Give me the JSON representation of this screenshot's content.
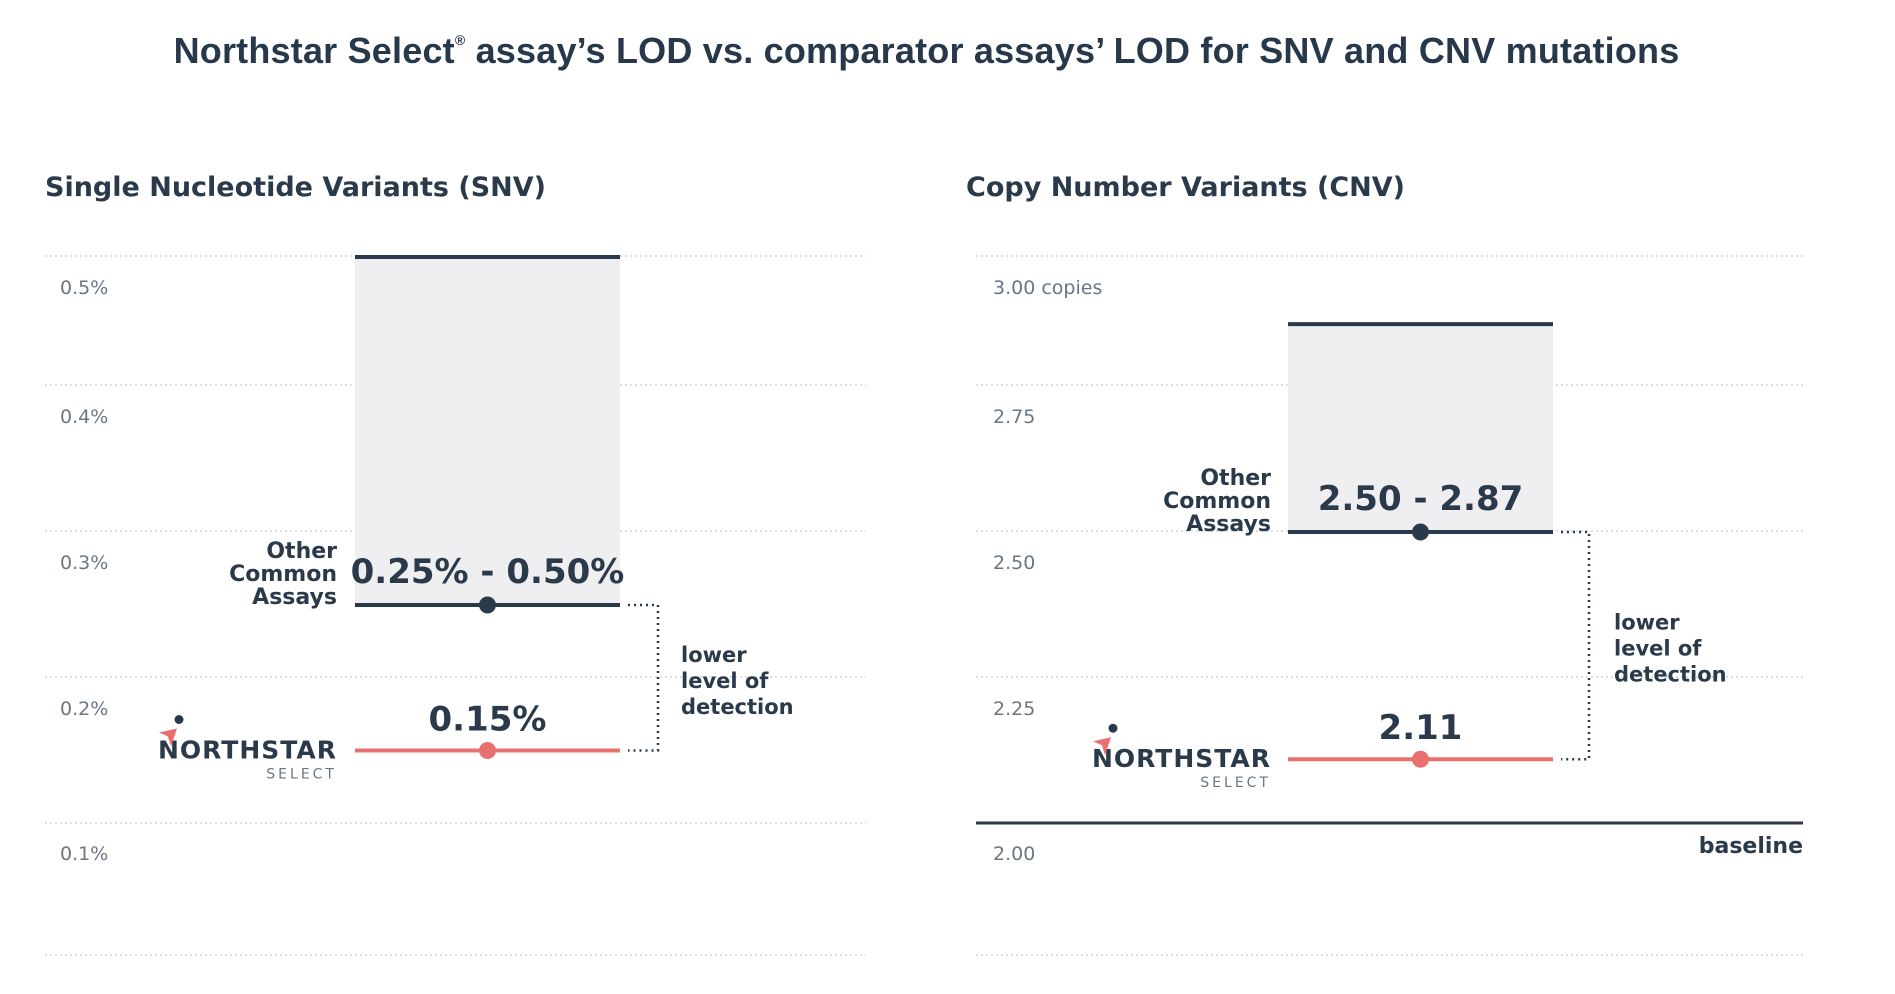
{
  "title": "Northstar Select",
  "title_mark": "®",
  "title_rest": " assay’s LOD vs. comparator assays’ LOD for SNV and CNV mutations",
  "logo": {
    "word": "NORTHSTAR",
    "sub": "SELECT"
  },
  "colors": {
    "dark": "#2b3a4b",
    "coral": "#e8706f",
    "band": "#efeff1",
    "grid": "#b9bfc6"
  },
  "chart_data": [
    {
      "type": "range",
      "title": "Single Nucleotide Variants (SNV)",
      "ylim": [
        0.05,
        0.52
      ],
      "gridlines": [
        0.1,
        0.2,
        0.3,
        0.4,
        0.5
      ],
      "ticks": [
        {
          "value": 0.5,
          "label": "0.5%"
        },
        {
          "value": 0.4,
          "label": "0.4%"
        },
        {
          "value": 0.3,
          "label": "0.3%"
        },
        {
          "value": 0.2,
          "label": "0.2%"
        },
        {
          "value": 0.1,
          "label": "0.1%"
        }
      ],
      "series": [
        {
          "name": "Other Common Assays",
          "low": 0.25,
          "high": 0.5,
          "label": "0.25% - 0.50%"
        },
        {
          "name": "NORTHSTAR SELECT",
          "value": 0.15,
          "label": "0.15%"
        }
      ],
      "annotation": [
        "lower",
        "level of",
        "detection"
      ],
      "baseline": null
    },
    {
      "type": "range",
      "title": "Copy Number Variants (CNV)",
      "ylim": [
        1.76,
        3.0
      ],
      "gridlines": [
        1.77,
        2.25,
        2.5,
        2.75,
        3.0
      ],
      "ticks": [
        {
          "value": 3.0,
          "label": "3.00 copies"
        },
        {
          "value": 2.75,
          "label": "2.75"
        },
        {
          "value": 2.5,
          "label": "2.50"
        },
        {
          "value": 2.25,
          "label": "2.25"
        },
        {
          "value": 2.0,
          "label": "2.00"
        }
      ],
      "series": [
        {
          "name": "Other Common Assays",
          "low": 2.5,
          "high": 2.87,
          "label": "2.50 - 2.87"
        },
        {
          "name": "NORTHSTAR SELECT",
          "value": 2.11,
          "label": "2.11"
        }
      ],
      "annotation": [
        "lower",
        "level of",
        "detection"
      ],
      "baseline": {
        "value": 2.0,
        "label": "baseline"
      }
    }
  ],
  "other_label": [
    "Other",
    "Common",
    "Assays"
  ]
}
